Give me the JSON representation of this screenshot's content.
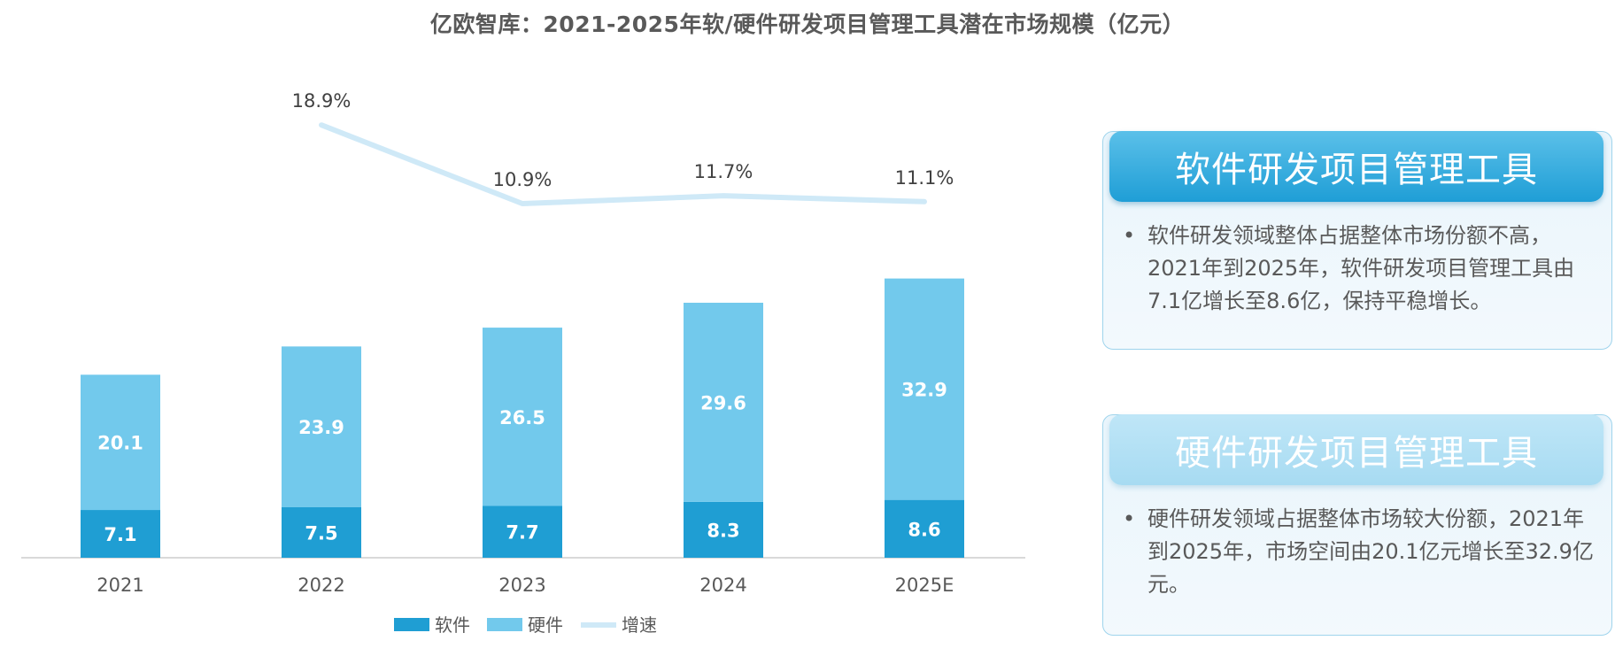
{
  "title": "亿欧智库：2021-2025年软/硬件研发项目管理工具潜在市场规模（亿元）",
  "chart_data": {
    "type": "bar",
    "stacked": true,
    "categories": [
      "2021",
      "2022",
      "2023",
      "2024",
      "2025E"
    ],
    "series": [
      {
        "name": "软件",
        "values": [
          7.1,
          7.5,
          7.7,
          8.3,
          8.6
        ],
        "color": "#1f9ed3"
      },
      {
        "name": "硬件",
        "values": [
          20.1,
          23.9,
          26.5,
          29.6,
          32.9
        ],
        "color": "#72c9ec"
      }
    ],
    "line": {
      "name": "增速",
      "x": [
        "2022",
        "2023",
        "2024",
        "2025E"
      ],
      "values": [
        18.9,
        10.9,
        11.7,
        11.1
      ],
      "labels": [
        "18.9%",
        "10.9%",
        "11.7%",
        "11.1%"
      ],
      "color": "#cfe9f7"
    },
    "ylim": [
      0,
      45
    ],
    "grid": false,
    "legend": "bottom"
  },
  "cards": [
    {
      "heading": "软件研发项目管理工具",
      "bullet": "•",
      "text": "软件研发领域整体占据整体市场份额不高，2021年到2025年，软件研发项目管理工具由7.1亿增长至8.6亿，保持平稳增长。"
    },
    {
      "heading": "硬件研发项目管理工具",
      "bullet": "•",
      "text": "硬件研发领域占据整体市场较大份额，2021年到2025年，市场空间由20.1亿元增长至32.9亿元。"
    }
  ]
}
